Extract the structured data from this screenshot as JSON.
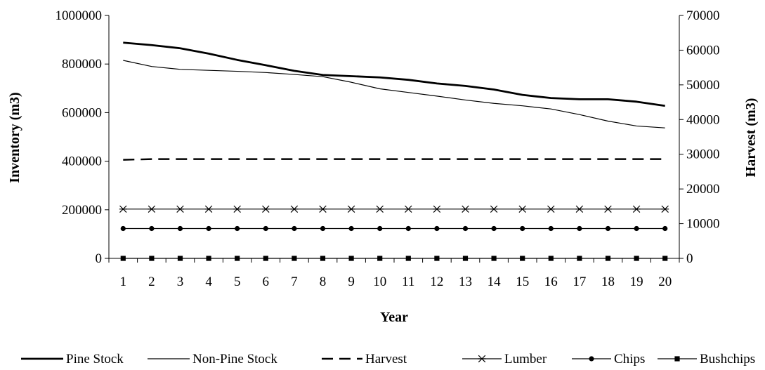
{
  "chart_data": {
    "type": "line",
    "xlabel": "Year",
    "ylabel_left": "Inventory (m3)",
    "ylabel_right": "Harvest (m3)",
    "x": [
      1,
      2,
      3,
      4,
      5,
      6,
      7,
      8,
      9,
      10,
      11,
      12,
      13,
      14,
      15,
      16,
      17,
      18,
      19,
      20
    ],
    "ylim_left": [
      0,
      1000000
    ],
    "ylim_right": [
      0,
      70000
    ],
    "yticks_left": [
      "0",
      "200000",
      "400000",
      "600000",
      "800000",
      "1000000"
    ],
    "yticks_right": [
      "0",
      "10000",
      "20000",
      "30000",
      "40000",
      "50000",
      "60000",
      "70000"
    ],
    "grid": false,
    "legend_position": "bottom",
    "series": [
      {
        "name": "Pine Stock",
        "axis": "left",
        "style": "thick",
        "marker": "none",
        "values": [
          888000,
          878000,
          865000,
          843000,
          817000,
          795000,
          772000,
          755000,
          750000,
          745000,
          735000,
          720000,
          710000,
          695000,
          673000,
          660000,
          655000,
          655000,
          645000,
          628000
        ]
      },
      {
        "name": "Non-Pine Stock",
        "axis": "left",
        "style": "thin",
        "marker": "none",
        "values": [
          815000,
          790000,
          778000,
          774000,
          770000,
          765000,
          757000,
          748000,
          725000,
          698000,
          683000,
          668000,
          652000,
          638000,
          628000,
          615000,
          592000,
          565000,
          545000,
          537000
        ]
      },
      {
        "name": "Harvest",
        "axis": "right",
        "style": "dashed",
        "marker": "none",
        "values": [
          28400,
          28600,
          28600,
          28600,
          28600,
          28600,
          28600,
          28600,
          28600,
          28600,
          28600,
          28600,
          28600,
          28600,
          28600,
          28600,
          28600,
          28600,
          28600,
          28600
        ]
      },
      {
        "name": "Lumber",
        "axis": "right",
        "style": "thin",
        "marker": "asterisk",
        "values": [
          14200,
          14200,
          14200,
          14200,
          14200,
          14200,
          14200,
          14200,
          14200,
          14200,
          14200,
          14200,
          14200,
          14200,
          14200,
          14200,
          14200,
          14200,
          14200,
          14200
        ]
      },
      {
        "name": "Chips",
        "axis": "right",
        "style": "thin",
        "marker": "circle",
        "values": [
          8600,
          8600,
          8600,
          8600,
          8600,
          8600,
          8600,
          8600,
          8600,
          8600,
          8600,
          8600,
          8600,
          8600,
          8600,
          8600,
          8600,
          8600,
          8600,
          8600
        ]
      },
      {
        "name": "Bushchips",
        "axis": "right",
        "style": "thin",
        "marker": "square",
        "values": [
          0,
          0,
          0,
          0,
          0,
          0,
          0,
          0,
          0,
          0,
          0,
          0,
          0,
          0,
          0,
          0,
          0,
          0,
          0,
          0
        ]
      }
    ]
  }
}
